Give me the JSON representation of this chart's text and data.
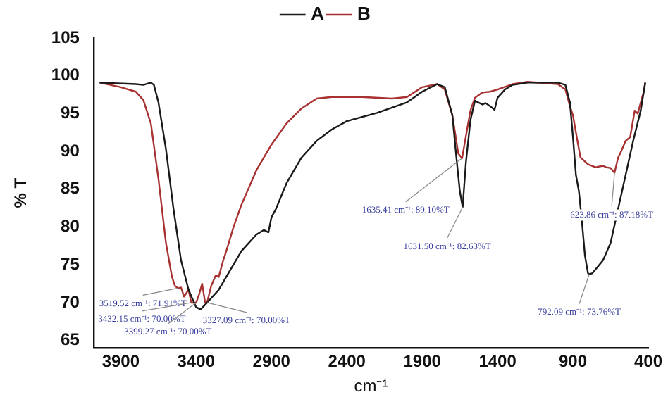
{
  "chart_data": {
    "type": "line",
    "xlabel": "cm⁻¹",
    "ylabel": "% T",
    "xlim": [
      4080,
      400
    ],
    "xticks": [
      3900,
      3400,
      2900,
      2400,
      1900,
      1400,
      900,
      400
    ],
    "ylim": [
      64,
      105
    ],
    "yticks": [
      65,
      70,
      75,
      80,
      85,
      90,
      95,
      100,
      105
    ],
    "grid": false,
    "legend": "top",
    "marker": "none",
    "line_style": "solid",
    "series": [
      {
        "name": "A",
        "color": "#1a1a1a",
        "x": [
          4040,
          3800,
          3750,
          3700,
          3680,
          3650,
          3600,
          3550,
          3500,
          3450,
          3400,
          3370,
          3327,
          3250,
          3200,
          3100,
          3000,
          2950,
          2920,
          2900,
          2870,
          2800,
          2700,
          2600,
          2500,
          2400,
          2200,
          2000,
          1900,
          1800,
          1750,
          1700,
          1670,
          1650,
          1631.5,
          1610,
          1580,
          1550,
          1500,
          1480,
          1450,
          1420,
          1400,
          1350,
          1300,
          1200,
          1000,
          950,
          920,
          900,
          880,
          860,
          840,
          820,
          800,
          792.09,
          770,
          700,
          650,
          600,
          550,
          500,
          450,
          420
        ],
        "values": [
          99.1,
          98.9,
          98.8,
          99.1,
          98.8,
          96.5,
          90.3,
          82.4,
          75.6,
          71.7,
          69.4,
          69.1,
          70.0,
          71.7,
          73.4,
          76.8,
          79.0,
          79.6,
          79.3,
          81.3,
          82.4,
          85.8,
          89.2,
          91.4,
          92.9,
          94.0,
          95.1,
          96.5,
          97.9,
          98.9,
          98.5,
          94.8,
          88.6,
          84.7,
          82.63,
          88.5,
          94.1,
          96.7,
          96.2,
          96.4,
          96.0,
          95.5,
          97.1,
          98.2,
          98.8,
          99.1,
          99.1,
          98.8,
          96.5,
          92.0,
          86.9,
          84.7,
          80.7,
          76.2,
          73.9,
          73.76,
          73.9,
          75.6,
          77.9,
          82.4,
          86.9,
          91.4,
          95.4,
          99.1
        ]
      },
      {
        "name": "B",
        "color": "#a83232",
        "x": [
          4040,
          3900,
          3800,
          3750,
          3700,
          3650,
          3600,
          3560,
          3540,
          3519.52,
          3500,
          3480,
          3450,
          3432.15,
          3399.27,
          3380,
          3360,
          3340,
          3327.09,
          3300,
          3270,
          3250,
          3220,
          3200,
          3150,
          3100,
          3000,
          2900,
          2800,
          2700,
          2600,
          2500,
          2300,
          2100,
          2000,
          1900,
          1800,
          1750,
          1700,
          1660,
          1635.41,
          1610,
          1580,
          1550,
          1500,
          1450,
          1400,
          1300,
          1200,
          1000,
          950,
          920,
          900,
          870,
          850,
          800,
          750,
          700,
          680,
          650,
          623.86,
          600,
          580,
          550,
          520,
          490,
          470,
          430,
          420
        ],
        "values": [
          99.1,
          98.5,
          97.9,
          96.8,
          93.7,
          86.4,
          77.9,
          73.4,
          72.2,
          71.91,
          72.0,
          70.8,
          71.7,
          70.0,
          70.0,
          71.1,
          72.5,
          70.0,
          70.0,
          72.2,
          73.6,
          73.4,
          75.6,
          76.8,
          80.1,
          82.9,
          87.5,
          90.9,
          93.7,
          95.7,
          97.0,
          97.2,
          97.2,
          97.0,
          97.2,
          98.5,
          98.9,
          98.2,
          94.8,
          89.7,
          89.1,
          92.0,
          95.4,
          97.1,
          97.8,
          97.9,
          98.2,
          98.9,
          99.2,
          98.9,
          98.2,
          96.0,
          94.8,
          91.4,
          89.2,
          88.3,
          87.9,
          88.1,
          87.9,
          87.8,
          87.18,
          89.2,
          90.0,
          91.4,
          91.9,
          95.4,
          95.0,
          97.9,
          99.1
        ]
      }
    ],
    "annotations": [
      {
        "text": "3519.52 cm⁻¹: 71.91%T",
        "x": 3519.52,
        "y": 71.91
      },
      {
        "text": "3432.15 cm⁻¹: 70.00%T",
        "x": 3432.15,
        "y": 70.0
      },
      {
        "text": "3399.27 cm⁻¹: 70.00%T",
        "x": 3399.27,
        "y": 70.0
      },
      {
        "text": "3327.09 cm⁻¹: 70.00%T",
        "x": 3327.09,
        "y": 70.0
      },
      {
        "text": "1635.41 cm⁻¹: 89.10%T",
        "x": 1635.41,
        "y": 89.1
      },
      {
        "text": "1631.50 cm⁻¹: 82.63%T",
        "x": 1631.5,
        "y": 82.63
      },
      {
        "text": "792.09 cm⁻¹: 73.76%T",
        "x": 792.09,
        "y": 73.76
      },
      {
        "text": "623.86 cm⁻¹: 87.18%T",
        "x": 623.86,
        "y": 87.18
      }
    ]
  }
}
